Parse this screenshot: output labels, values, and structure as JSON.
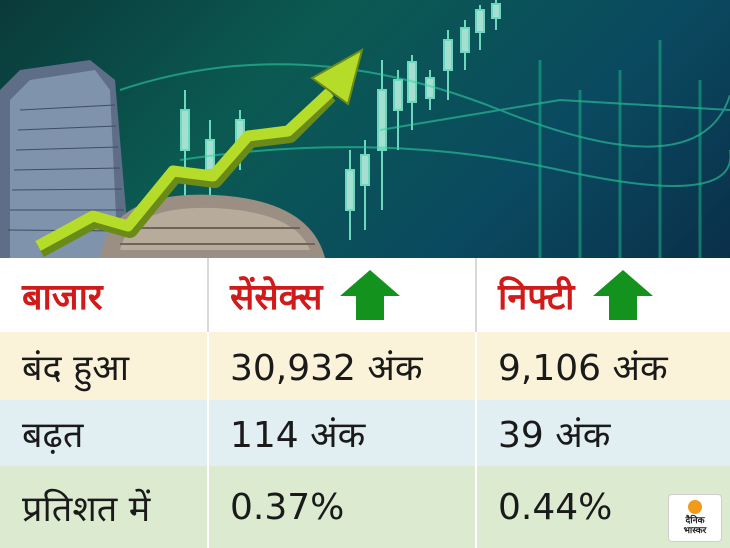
{
  "colors": {
    "header_text": "#d11a1a",
    "arrow_up": "#14921e",
    "row_close": "#fbf3d9",
    "row_gain": "#e1eef2",
    "row_pct": "#dcebd0"
  },
  "icons": [
    "up-arrow-icon",
    "rising-trend-arrow-icon"
  ],
  "table": {
    "headers": {
      "market": "बाजार",
      "sensex": "सेंसेक्स",
      "nifty": "निफ्टी"
    },
    "rows": [
      {
        "label": "बंद हुआ",
        "sensex": "30,932 अंक",
        "nifty": "9,106 अंक"
      },
      {
        "label": "बढ़त",
        "sensex": "114 अंक",
        "nifty": "39 अंक"
      },
      {
        "label": "प्रतिशत में",
        "sensex": "0.37%",
        "nifty": "0.44%"
      }
    ]
  },
  "logo": {
    "line1": "दैनिक",
    "line2": "भास्कर"
  }
}
